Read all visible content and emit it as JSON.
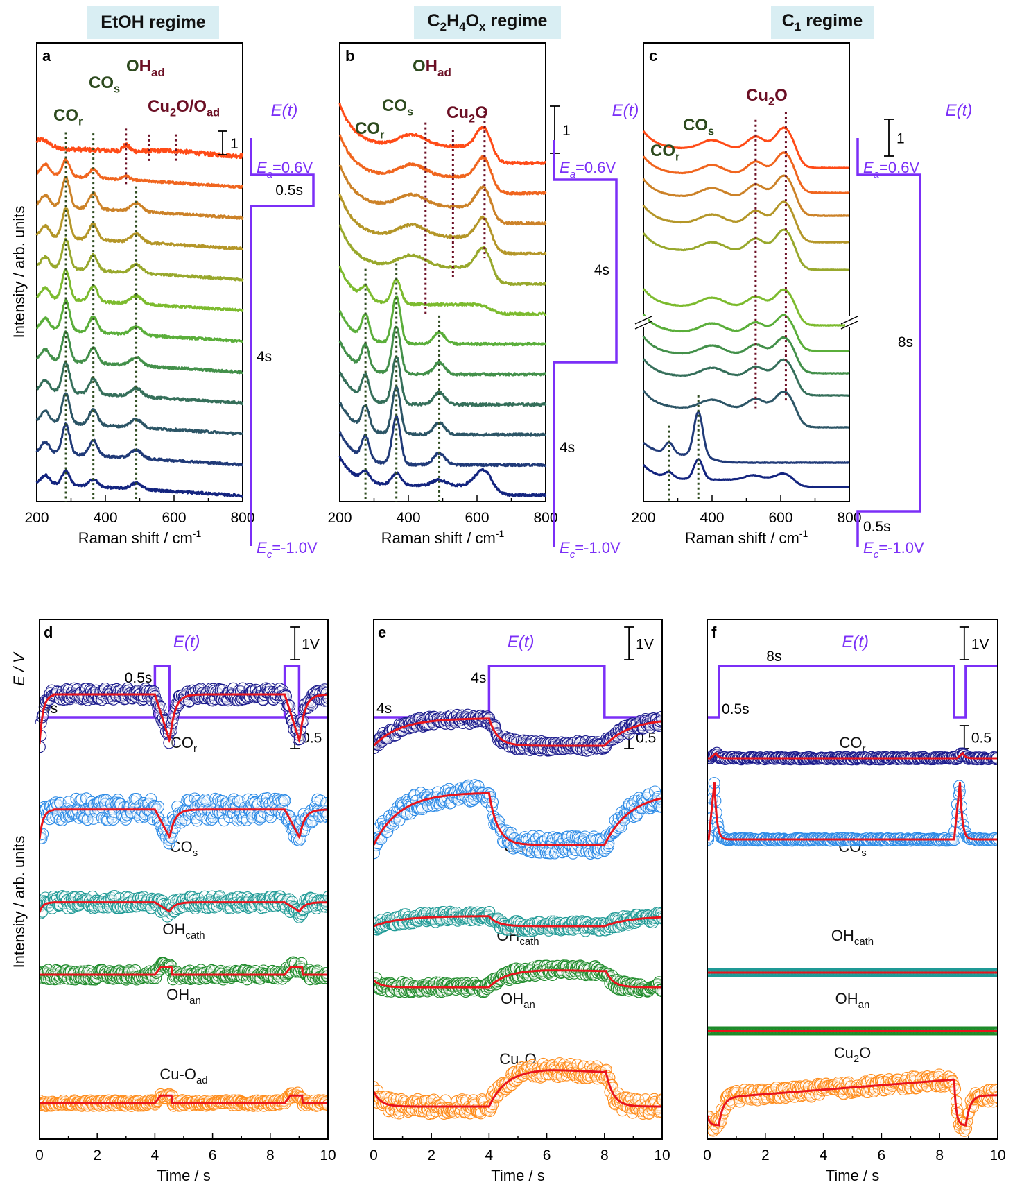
{
  "figure": {
    "regimes": [
      {
        "id": "a",
        "label": "EtOH regime"
      },
      {
        "id": "b",
        "label": "C2H4Ox regime"
      },
      {
        "id": "c",
        "label": "C1 regime"
      }
    ],
    "spectra_axis": {
      "xlabel": "Raman shift / cm-1",
      "ylabel": "Intensity / arb. units",
      "xlim": [
        200,
        800
      ],
      "ticks": [
        200,
        400,
        600,
        800
      ],
      "scale_bar_label": "1"
    },
    "time_axis": {
      "xlabel": "Time / s",
      "ylabel_top": "E / V",
      "ylabel": "Intensity / arb. units",
      "xlim": [
        0,
        10
      ],
      "ticks": [
        0,
        2,
        4,
        6,
        8,
        10
      ],
      "E_scale_label": "1V",
      "I_scale_label": "0.5"
    },
    "colors": {
      "purple": "#7b2ff7",
      "fit_red": "#e8141c",
      "label_green": "#2d4a1e",
      "label_maroon": "#6b0f24",
      "spectra_gradient": [
        "#ff4b17",
        "#f0651e",
        "#cc8228",
        "#b49628",
        "#98a82c",
        "#7cbb2e",
        "#5aae3a",
        "#43904a",
        "#356f5a",
        "#2c5566",
        "#203a78",
        "#13247f"
      ]
    }
  },
  "chart_data": [
    {
      "panel": "a",
      "type": "line",
      "title": "EtOH regime",
      "xlabel": "Raman shift / cm-1",
      "ylabel": "Intensity / arb. units",
      "xlim": [
        200,
        800
      ],
      "n_spectra": 12,
      "peak_labels": [
        {
          "text": "CO",
          "sub": "r",
          "color": "green",
          "x": 285
        },
        {
          "text": "CO",
          "sub": "s",
          "color": "green",
          "x": 365
        },
        {
          "text": "OH",
          "sub": "ad",
          "color": "mixed",
          "x": 460
        },
        {
          "text": "Cu2O/O",
          "sub": "ad",
          "color": "maroon",
          "x": 530
        }
      ],
      "dotted_lines": [
        {
          "x": 285,
          "color": "green",
          "from_spectrum": 0,
          "to_spectrum": 11
        },
        {
          "x": 365,
          "color": "green",
          "from_spectrum": 0,
          "to_spectrum": 11
        },
        {
          "x": 460,
          "color": "maroon",
          "from_spectrum": 0,
          "to_spectrum": 1
        },
        {
          "x": 527,
          "color": "maroon",
          "from_spectrum": 0,
          "to_spectrum": 0
        },
        {
          "x": 605,
          "color": "maroon",
          "from_spectrum": 0,
          "to_spectrum": 0
        },
        {
          "x": 490,
          "color": "green",
          "from_spectrum": 2,
          "to_spectrum": 11
        }
      ],
      "spectra_peaks": {
        "anodic_count": 1,
        "cathodic": {
          "COr": [
            285,
            1.3
          ],
          "COs": [
            365,
            0.6
          ],
          "Cu_O": [
            490,
            0.35
          ],
          "slope": -0.45
        }
      },
      "E_program": {
        "label": "E(t)",
        "Ea": "Ea=0.6V",
        "Ec": "Ec=-1.0V",
        "anodic_time": "0.5s",
        "cathodic_time": "4s",
        "anodic_spectra": 1
      }
    },
    {
      "panel": "b",
      "type": "line",
      "title": "C2H4Ox regime",
      "xlabel": "Raman shift / cm-1",
      "ylabel": "Intensity / arb. units",
      "xlim": [
        200,
        800
      ],
      "n_spectra": 12,
      "peak_labels": [
        {
          "text": "CO",
          "sub": "r",
          "color": "green",
          "x": 275
        },
        {
          "text": "CO",
          "sub": "s",
          "color": "green",
          "x": 365
        },
        {
          "text": "OH",
          "sub": "ad",
          "color": "mixed",
          "x": 450
        },
        {
          "text": "Cu2O",
          "sub": "",
          "color": "maroon",
          "x": 580
        }
      ],
      "dotted_lines": [
        {
          "x": 450,
          "color": "maroon",
          "from_spectrum": 0,
          "to_spectrum": 5
        },
        {
          "x": 530,
          "color": "maroon",
          "from_spectrum": 0,
          "to_spectrum": 4
        },
        {
          "x": 622,
          "color": "maroon",
          "from_spectrum": 0,
          "to_spectrum": 4
        },
        {
          "x": 275,
          "color": "green",
          "from_spectrum": 5,
          "to_spectrum": 11
        },
        {
          "x": 365,
          "color": "green",
          "from_spectrum": 5,
          "to_spectrum": 11
        },
        {
          "x": 490,
          "color": "green",
          "from_spectrum": 6,
          "to_spectrum": 11
        }
      ],
      "E_program": {
        "label": "E(t)",
        "Ea": "Ea=0.6V",
        "Ec": "Ec=-1.0V",
        "anodic_time": "4s",
        "cathodic_time": "4s",
        "anodic_spectra": 6
      }
    },
    {
      "panel": "c",
      "type": "line",
      "title": "C1 regime",
      "xlabel": "Raman shift / cm-1",
      "ylabel": "Intensity / arb. units",
      "xlim": [
        200,
        800
      ],
      "n_spectra": 12,
      "axis_break": true,
      "peak_labels": [
        {
          "text": "CO",
          "sub": "r",
          "color": "green",
          "x": 270
        },
        {
          "text": "CO",
          "sub": "s",
          "color": "green",
          "x": 360
        },
        {
          "text": "Cu2O",
          "sub": "",
          "color": "maroon",
          "x": 570
        }
      ],
      "dotted_lines": [
        {
          "x": 527,
          "color": "maroon",
          "from_spectrum": 0,
          "to_spectrum": 9
        },
        {
          "x": 615,
          "color": "maroon",
          "from_spectrum": 0,
          "to_spectrum": 9
        },
        {
          "x": 275,
          "color": "green",
          "from_spectrum": 10,
          "to_spectrum": 11
        },
        {
          "x": 360,
          "color": "green",
          "from_spectrum": 10,
          "to_spectrum": 11
        }
      ],
      "E_program": {
        "label": "E(t)",
        "Ea": "Ea=0.6V",
        "Ec": "Ec=-1.0V",
        "anodic_time": "8s",
        "cathodic_time": "0.5s",
        "anodic_spectra": 10
      }
    },
    {
      "panel": "d",
      "type": "scatter",
      "xlabel": "Time / s",
      "xlim": [
        0,
        10
      ],
      "E_t": {
        "label": "E(t)",
        "segments": [
          [
            0,
            "low"
          ],
          [
            4.0,
            "high"
          ],
          [
            4.5,
            "low"
          ],
          [
            8.5,
            "high"
          ],
          [
            9.0,
            "low"
          ],
          [
            10,
            "low"
          ]
        ],
        "annotations": [
          "4s",
          "0.5s"
        ]
      },
      "series": [
        {
          "name": "CO",
          "sub": "r",
          "color": "#1a1a8c",
          "baseline": 0.0,
          "high": 1.0,
          "shape": "dip",
          "dip_times": [
            [
              4.0,
              4.5
            ],
            [
              8.5,
              9.0
            ]
          ],
          "noise": 0.25
        },
        {
          "name": "CO",
          "sub": "s",
          "color": "#2b8ae6",
          "baseline": 0.0,
          "high": 0.6,
          "shape": "dip",
          "dip_times": [
            [
              4.0,
              4.5
            ],
            [
              8.5,
              9.0
            ]
          ],
          "noise": 0.45
        },
        {
          "name": "OH",
          "sub": "cath",
          "color": "#1f9a96",
          "baseline": 0.0,
          "high": 0.2,
          "shape": "dip",
          "dip_times": [
            [
              4.0,
              4.5
            ],
            [
              8.5,
              9.0
            ]
          ],
          "noise": 0.25
        },
        {
          "name": "OH",
          "sub": "an",
          "color": "#1e8b2a",
          "baseline": 0.0,
          "high": 0.15,
          "shape": "bump",
          "bump_times": [
            [
              4.0,
              4.5
            ],
            [
              8.5,
              9.0
            ]
          ],
          "noise": 0.2
        },
        {
          "name": "Cu-O",
          "sub": "ad",
          "color": "#ff8c1a",
          "baseline": 0.0,
          "high": 0.15,
          "shape": "bump",
          "bump_times": [
            [
              4.0,
              4.5
            ],
            [
              8.5,
              9.0
            ]
          ],
          "noise": 0.12
        }
      ]
    },
    {
      "panel": "e",
      "type": "scatter",
      "xlabel": "Time / s",
      "xlim": [
        0,
        10
      ],
      "E_t": {
        "label": "E(t)",
        "segments": [
          [
            0,
            "low"
          ],
          [
            4.0,
            "high"
          ],
          [
            8.0,
            "low"
          ],
          [
            10,
            "low"
          ]
        ],
        "annotations": [
          "4s",
          "4s"
        ]
      },
      "series": [
        {
          "name": "CO",
          "sub": "r",
          "color": "#1a1a8c",
          "baseline": 0.0,
          "high": 0.55,
          "shape": "cathodic_rise",
          "noise": 0.2
        },
        {
          "name": "CO",
          "sub": "s",
          "color": "#2b8ae6",
          "baseline": 0.0,
          "high": 1.05,
          "shape": "cathodic_rise",
          "noise": 0.35
        },
        {
          "name": "OH",
          "sub": "cath",
          "color": "#1f9a96",
          "baseline": 0.0,
          "high": 0.2,
          "shape": "cathodic_rise",
          "noise": 0.2
        },
        {
          "name": "OH",
          "sub": "an",
          "color": "#1e8b2a",
          "baseline": 0.0,
          "high": 0.35,
          "shape": "anodic_rise",
          "noise": 0.2
        },
        {
          "name": "Cu2O",
          "sub": "",
          "color": "#ff8c1a",
          "baseline": 0.0,
          "high": 0.75,
          "shape": "anodic_rise",
          "noise": 0.3
        }
      ]
    },
    {
      "panel": "f",
      "type": "scatter",
      "xlabel": "Time / s",
      "xlim": [
        0,
        10
      ],
      "E_t": {
        "label": "E(t)",
        "segments": [
          [
            0,
            "low"
          ],
          [
            0.4,
            "high"
          ],
          [
            8.5,
            "low"
          ],
          [
            8.9,
            "high"
          ],
          [
            10,
            "high"
          ]
        ],
        "annotations": [
          "8s",
          "0.5s"
        ]
      },
      "series": [
        {
          "name": "CO",
          "sub": "r",
          "color": "#1a1a8c",
          "baseline": 0.0,
          "high": 0.1,
          "shape": "spike",
          "spike_times": [
            0.3,
            8.8
          ],
          "noise": 0.05
        },
        {
          "name": "CO",
          "sub": "s",
          "color": "#2b8ae6",
          "baseline": 0.0,
          "high": 1.15,
          "shape": "spike",
          "spike_times": [
            0.25,
            8.7
          ],
          "noise": 0.05
        },
        {
          "name": "OH",
          "sub": "cath",
          "color": "#1f9a96",
          "baseline": 0.0,
          "high": 0.0,
          "shape": "flat",
          "noise": 0.0
        },
        {
          "name": "OH",
          "sub": "an",
          "color": "#1e8b2a",
          "baseline": 0.0,
          "high": 0.0,
          "shape": "flat",
          "noise": 0.0
        },
        {
          "name": "Cu2O",
          "sub": "",
          "color": "#ff8c1a",
          "baseline": 0.0,
          "high": 1.0,
          "shape": "anodic_slow",
          "dip_times": [
            [
              0,
              0.4
            ],
            [
              8.5,
              8.9
            ]
          ],
          "noise": 0.25
        }
      ]
    }
  ]
}
